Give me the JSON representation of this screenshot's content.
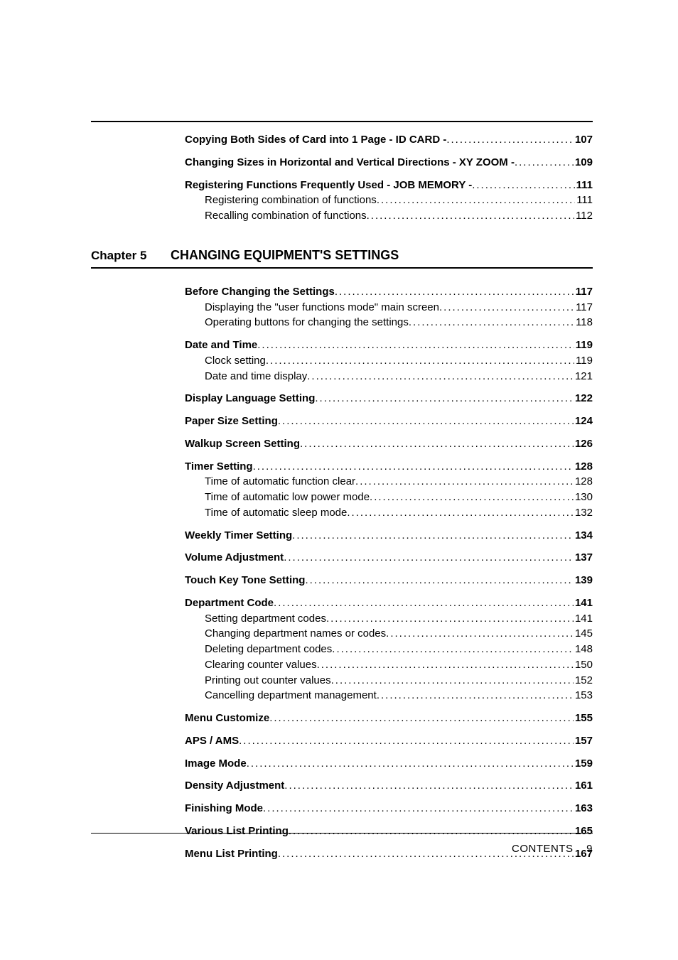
{
  "colors": {
    "text": "#000000",
    "background": "#ffffff",
    "rule": "#000000"
  },
  "typography": {
    "base_family": "Arial, Helvetica, sans-serif",
    "base_size_pt": 11,
    "chapter_size_pt": 13,
    "bold_weight": 700
  },
  "leader_char": ".",
  "pre_chapter": {
    "items": [
      {
        "label": "Copying Both Sides of Card into 1 Page - ID CARD - ",
        "page": "107",
        "bold": true,
        "indent": 0
      },
      {
        "label": "Changing Sizes in Horizontal and Vertical Directions - XY ZOOM - ",
        "page": "109",
        "bold": true,
        "indent": 0,
        "group_start": true
      },
      {
        "label": "Registering Functions Frequently Used - JOB MEMORY - ",
        "page": "111",
        "bold": true,
        "indent": 0,
        "group_start": true
      },
      {
        "label": "Registering combination of functions",
        "page": "111",
        "bold": false,
        "indent": 1
      },
      {
        "label": "Recalling combination of functions",
        "page": "112",
        "bold": false,
        "indent": 1
      }
    ]
  },
  "chapter": {
    "number": "Chapter 5",
    "title": "CHANGING EQUIPMENT'S SETTINGS",
    "items": [
      {
        "label": "Before Changing the Settings",
        "page": "117",
        "bold": true,
        "indent": 0
      },
      {
        "label": "Displaying the \"user functions mode\" main screen",
        "page": "117",
        "bold": false,
        "indent": 1
      },
      {
        "label": "Operating buttons for changing the settings",
        "page": "118",
        "bold": false,
        "indent": 1
      },
      {
        "label": "Date and Time",
        "page": "119",
        "bold": true,
        "indent": 0,
        "group_start": true
      },
      {
        "label": "Clock setting",
        "page": "119",
        "bold": false,
        "indent": 1
      },
      {
        "label": "Date and time display",
        "page": "121",
        "bold": false,
        "indent": 1
      },
      {
        "label": "Display Language Setting",
        "page": "122",
        "bold": true,
        "indent": 0,
        "group_start": true
      },
      {
        "label": "Paper Size Setting",
        "page": "124",
        "bold": true,
        "indent": 0,
        "group_start": true
      },
      {
        "label": "Walkup Screen Setting",
        "page": "126",
        "bold": true,
        "indent": 0,
        "group_start": true
      },
      {
        "label": "Timer Setting",
        "page": "128",
        "bold": true,
        "indent": 0,
        "group_start": true
      },
      {
        "label": "Time of automatic function clear",
        "page": "128",
        "bold": false,
        "indent": 1
      },
      {
        "label": "Time of automatic low power mode",
        "page": "130",
        "bold": false,
        "indent": 1
      },
      {
        "label": "Time of automatic sleep mode",
        "page": "132",
        "bold": false,
        "indent": 1
      },
      {
        "label": "Weekly Timer Setting",
        "page": "134",
        "bold": true,
        "indent": 0,
        "group_start": true
      },
      {
        "label": "Volume Adjustment",
        "page": "137",
        "bold": true,
        "indent": 0,
        "group_start": true
      },
      {
        "label": "Touch Key Tone Setting",
        "page": "139",
        "bold": true,
        "indent": 0,
        "group_start": true
      },
      {
        "label": "Department Code",
        "page": "141",
        "bold": true,
        "indent": 0,
        "group_start": true
      },
      {
        "label": "Setting department codes",
        "page": "141",
        "bold": false,
        "indent": 1
      },
      {
        "label": "Changing department names or codes",
        "page": "145",
        "bold": false,
        "indent": 1
      },
      {
        "label": "Deleting department codes",
        "page": "148",
        "bold": false,
        "indent": 1
      },
      {
        "label": "Clearing counter values",
        "page": "150",
        "bold": false,
        "indent": 1
      },
      {
        "label": "Printing out counter values",
        "page": "152",
        "bold": false,
        "indent": 1
      },
      {
        "label": "Cancelling department management",
        "page": "153",
        "bold": false,
        "indent": 1
      },
      {
        "label": "Menu Customize",
        "page": "155",
        "bold": true,
        "indent": 0,
        "group_start": true
      },
      {
        "label": "APS / AMS",
        "page": "157",
        "bold": true,
        "indent": 0,
        "group_start": true
      },
      {
        "label": "Image Mode",
        "page": "159",
        "bold": true,
        "indent": 0,
        "group_start": true
      },
      {
        "label": "Density Adjustment",
        "page": "161",
        "bold": true,
        "indent": 0,
        "group_start": true
      },
      {
        "label": "Finishing Mode",
        "page": "163",
        "bold": true,
        "indent": 0,
        "group_start": true
      },
      {
        "label": "Various List Printing",
        "page": "165",
        "bold": true,
        "indent": 0,
        "group_start": true
      },
      {
        "label": "Menu List Printing",
        "page": "167",
        "bold": true,
        "indent": 0,
        "group_start": true
      }
    ]
  },
  "footer": {
    "label": "CONTENTS",
    "page": "9"
  }
}
